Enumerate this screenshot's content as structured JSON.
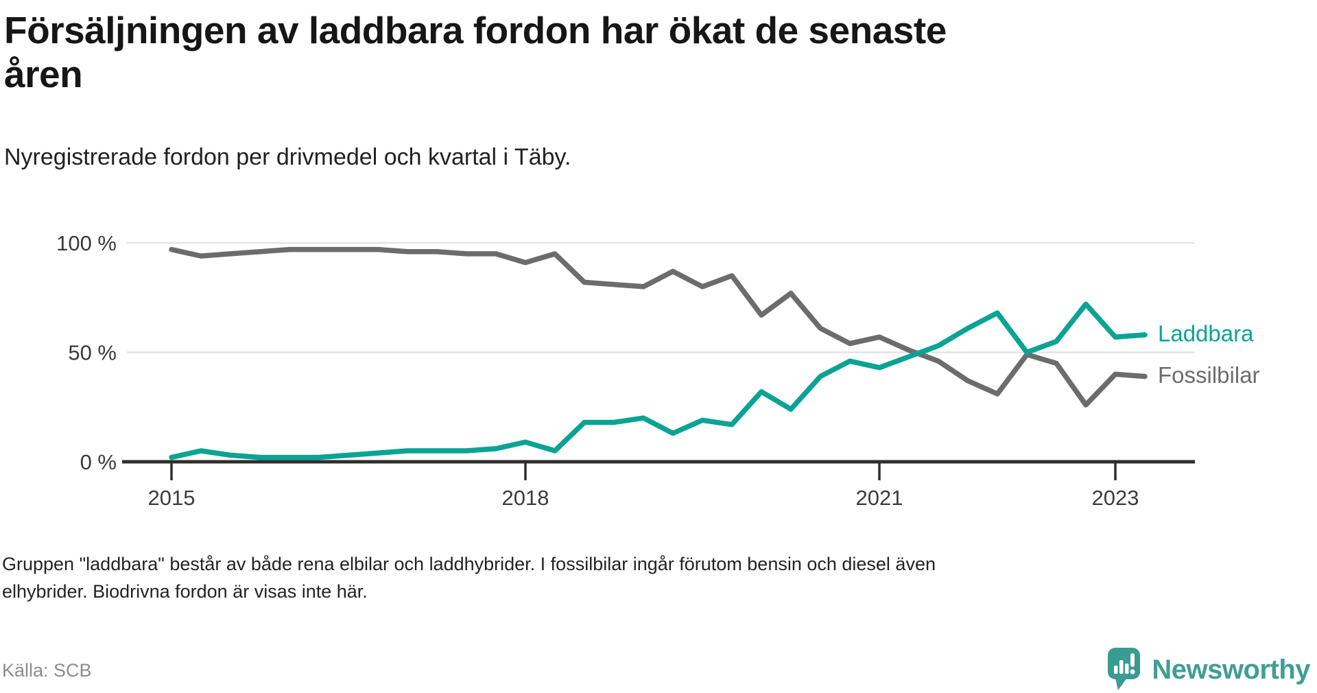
{
  "header": {
    "title_line1": "Försäljningen av laddbara fordon har ökat de senaste",
    "title_line2": "åren",
    "subtitle": "Nyregistrerade fordon per drivmedel och kvartal i Täby."
  },
  "footnote": {
    "line1": "Gruppen \"laddbara\" består av både rena elbilar och laddhybrider. I fossilbilar ingår förutom bensin och diesel även",
    "line2": "elhybrider. Biodrivna fordon är visas inte här."
  },
  "source": {
    "label": "Källa: SCB"
  },
  "brand": {
    "name": "Newsworthy",
    "logo_icon": "speech-bubble-bar-chart-exclamation-icon",
    "color": "#3a9b90"
  },
  "colors": {
    "laddbara": "#0ba394",
    "fossilbilar": "#6c6c6c",
    "gridline": "#e4e4e4",
    "axis": "#2e2e2e",
    "tick_text": "#3b3b3b",
    "background": "#ffffff"
  },
  "chart_data": {
    "type": "line",
    "title": "Nyregistrerade fordon per drivmedel och kvartal i Täby",
    "xlabel": "",
    "ylabel": "",
    "ylim": [
      0,
      100
    ],
    "y_unit": "%",
    "grid": "horizontal",
    "legend_position": "right-end-labels",
    "x": [
      "2015 Q1",
      "2015 Q2",
      "2015 Q3",
      "2015 Q4",
      "2016 Q1",
      "2016 Q2",
      "2016 Q3",
      "2016 Q4",
      "2017 Q1",
      "2017 Q2",
      "2017 Q3",
      "2017 Q4",
      "2018 Q1",
      "2018 Q2",
      "2018 Q3",
      "2018 Q4",
      "2019 Q1",
      "2019 Q2",
      "2019 Q3",
      "2019 Q4",
      "2020 Q1",
      "2020 Q2",
      "2020 Q3",
      "2020 Q4",
      "2021 Q1",
      "2021 Q2",
      "2021 Q3",
      "2021 Q4",
      "2022 Q1",
      "2022 Q2",
      "2022 Q3",
      "2022 Q4",
      "2023 Q1",
      "2023 Q2"
    ],
    "x_ticks": [
      {
        "label": "2015",
        "quarter_index": 0
      },
      {
        "label": "2018",
        "quarter_index": 12
      },
      {
        "label": "2021",
        "quarter_index": 24
      },
      {
        "label": "2023",
        "quarter_index": 32
      }
    ],
    "y_ticks": [
      {
        "label": "100 %",
        "value": 100
      },
      {
        "label": "50 %",
        "value": 50
      },
      {
        "label": "0 %",
        "value": 0
      }
    ],
    "series": [
      {
        "name": "Laddbara",
        "color": "#0ba394",
        "values": [
          2,
          5,
          3,
          2,
          2,
          2,
          3,
          4,
          5,
          5,
          5,
          6,
          9,
          5,
          18,
          18,
          20,
          13,
          19,
          17,
          32,
          24,
          39,
          46,
          43,
          48,
          53,
          61,
          68,
          50,
          55,
          72,
          57,
          58
        ]
      },
      {
        "name": "Fossilbilar",
        "color": "#6c6c6c",
        "values": [
          97,
          94,
          95,
          96,
          97,
          97,
          97,
          97,
          96,
          96,
          95,
          95,
          91,
          95,
          82,
          81,
          80,
          87,
          80,
          85,
          67,
          77,
          61,
          54,
          57,
          51,
          46,
          37,
          31,
          49,
          45,
          26,
          40,
          39
        ]
      }
    ]
  }
}
